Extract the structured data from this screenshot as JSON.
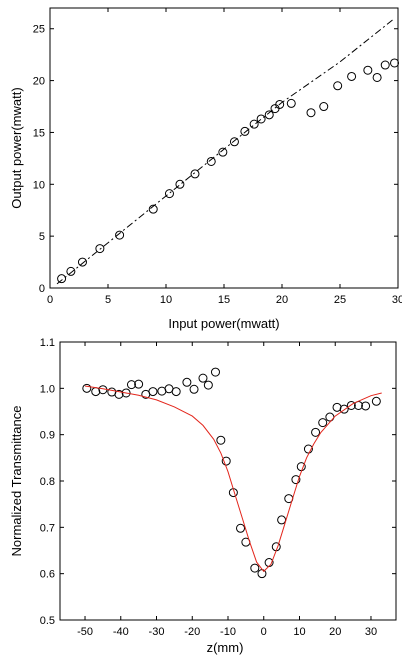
{
  "chart_data": [
    {
      "type": "scatter",
      "title": "",
      "xlabel": "Input power(mwatt)",
      "ylabel": "Output power(mwatt)",
      "xlim": [
        0,
        30
      ],
      "ylim": [
        0,
        27
      ],
      "xticks": [
        0,
        5,
        10,
        15,
        20,
        25,
        30
      ],
      "yticks": [
        0,
        5,
        10,
        15,
        20,
        25
      ],
      "grid": false,
      "series": [
        {
          "style": "open-circle",
          "points": [
            [
              1.0,
              0.9
            ],
            [
              1.8,
              1.6
            ],
            [
              2.8,
              2.5
            ],
            [
              4.3,
              3.8
            ],
            [
              6.0,
              5.1
            ],
            [
              8.9,
              7.6
            ],
            [
              10.3,
              9.1
            ],
            [
              11.2,
              10.0
            ],
            [
              12.5,
              11.0
            ],
            [
              13.9,
              12.2
            ],
            [
              14.9,
              13.1
            ],
            [
              15.9,
              14.1
            ],
            [
              16.8,
              15.1
            ],
            [
              17.6,
              15.8
            ],
            [
              18.2,
              16.3
            ],
            [
              18.9,
              16.7
            ],
            [
              19.4,
              17.3
            ],
            [
              19.8,
              17.7
            ],
            [
              20.8,
              17.8
            ],
            [
              22.5,
              16.9
            ],
            [
              23.6,
              17.5
            ],
            [
              24.8,
              19.5
            ],
            [
              26.0,
              20.4
            ],
            [
              27.4,
              21.0
            ],
            [
              28.2,
              20.3
            ],
            [
              28.9,
              21.5
            ],
            [
              29.7,
              21.7
            ]
          ]
        },
        {
          "style": "dash-dot-line",
          "points": [
            [
              0.6,
              0.4
            ],
            [
              20.0,
              17.9
            ],
            [
              25.0,
              21.8
            ],
            [
              29.7,
              26.0
            ]
          ]
        }
      ]
    },
    {
      "type": "scatter",
      "title": "",
      "xlabel": "z(mm)",
      "ylabel": "Normalized Transmittance",
      "xlim": [
        -57,
        37
      ],
      "ylim": [
        0.5,
        1.1
      ],
      "xticks": [
        -50,
        -40,
        -30,
        -20,
        -10,
        0,
        10,
        20,
        30
      ],
      "yticks": [
        0.5,
        0.6,
        0.7,
        0.8,
        0.9,
        1.0,
        1.1
      ],
      "grid": false,
      "series": [
        {
          "style": "open-circle",
          "points": [
            [
              -49.5,
              1.0
            ],
            [
              -47,
              0.993
            ],
            [
              -45,
              0.997
            ],
            [
              -42.5,
              0.992
            ],
            [
              -40.5,
              0.987
            ],
            [
              -38.5,
              0.99
            ],
            [
              -37,
              1.008
            ],
            [
              -35,
              1.009
            ],
            [
              -33,
              0.987
            ],
            [
              -31,
              0.993
            ],
            [
              -28.5,
              0.994
            ],
            [
              -26.5,
              0.999
            ],
            [
              -24.5,
              0.993
            ],
            [
              -21.5,
              1.013
            ],
            [
              -19.5,
              0.998
            ],
            [
              -17,
              1.022
            ],
            [
              -15.5,
              1.007
            ],
            [
              -13.5,
              1.035
            ],
            [
              -12,
              0.888
            ],
            [
              -10.5,
              0.843
            ],
            [
              -8.5,
              0.775
            ],
            [
              -6.5,
              0.698
            ],
            [
              -5,
              0.668
            ],
            [
              -2.5,
              0.612
            ],
            [
              -0.5,
              0.6
            ],
            [
              1.5,
              0.624
            ],
            [
              3.5,
              0.658
            ],
            [
              5,
              0.716
            ],
            [
              7,
              0.762
            ],
            [
              9,
              0.803
            ],
            [
              10.5,
              0.831
            ],
            [
              12.5,
              0.869
            ],
            [
              14.5,
              0.905
            ],
            [
              16.5,
              0.926
            ],
            [
              18.5,
              0.938
            ],
            [
              20.5,
              0.959
            ],
            [
              22.5,
              0.955
            ],
            [
              24.5,
              0.963
            ],
            [
              26.5,
              0.963
            ],
            [
              28.5,
              0.962
            ],
            [
              31.5,
              0.972
            ]
          ]
        },
        {
          "style": "red-line",
          "color": "#e3261c",
          "points": [
            [
              -50,
              1.005
            ],
            [
              -45,
              0.999
            ],
            [
              -40,
              0.992
            ],
            [
              -35,
              0.985
            ],
            [
              -30,
              0.975
            ],
            [
              -25,
              0.96
            ],
            [
              -20,
              0.94
            ],
            [
              -17,
              0.92
            ],
            [
              -14,
              0.89
            ],
            [
              -12,
              0.86
            ],
            [
              -10,
              0.82
            ],
            [
              -8,
              0.77
            ],
            [
              -6,
              0.72
            ],
            [
              -4,
              0.67
            ],
            [
              -2,
              0.625
            ],
            [
              0,
              0.605
            ],
            [
              2,
              0.62
            ],
            [
              4,
              0.66
            ],
            [
              6,
              0.71
            ],
            [
              8,
              0.76
            ],
            [
              10,
              0.81
            ],
            [
              12,
              0.85
            ],
            [
              14,
              0.88
            ],
            [
              16,
              0.905
            ],
            [
              20,
              0.94
            ],
            [
              25,
              0.967
            ],
            [
              30,
              0.984
            ],
            [
              33,
              0.99
            ]
          ]
        }
      ]
    }
  ]
}
